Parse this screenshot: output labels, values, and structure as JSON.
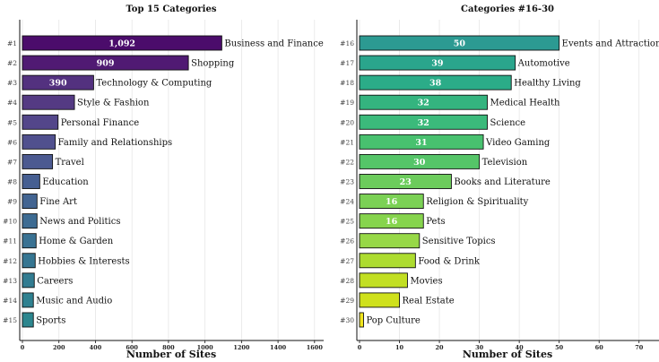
{
  "chart_data": [
    {
      "type": "bar",
      "orientation": "horizontal",
      "title": "Top 15 Categories",
      "xlabel": "Number of Sites",
      "ylabel": "",
      "xlim": [
        0,
        1650
      ],
      "xticks": [
        0,
        200,
        400,
        600,
        800,
        1000,
        1200,
        1400,
        1600
      ],
      "grid": "vertical",
      "ranks": [
        "#1",
        "#2",
        "#3",
        "#4",
        "#5",
        "#6",
        "#7",
        "#8",
        "#9",
        "#10",
        "#11",
        "#12",
        "#13",
        "#14",
        "#15"
      ],
      "categories": [
        "Business and Finance",
        "Shopping",
        "Technology & Computing",
        "Style & Fashion",
        "Personal Finance",
        "Family and Relationships",
        "Travel",
        "Education",
        "Fine Art",
        "News and Politics",
        "Home & Garden",
        "Hobbies & Interests",
        "Careers",
        "Music and Audio",
        "Sports"
      ],
      "values": [
        1092,
        909,
        390,
        285,
        195,
        180,
        165,
        95,
        80,
        80,
        75,
        70,
        65,
        60,
        60
      ],
      "value_labels": [
        "1,092",
        "909",
        "390",
        "",
        "",
        "",
        "",
        "",
        "",
        "",
        "",
        "",
        "",
        "",
        ""
      ],
      "colors": [
        "#4b0c6b",
        "#501a73",
        "#53317f",
        "#543a83",
        "#53468a",
        "#50508e",
        "#4c5a91",
        "#465f92",
        "#436592",
        "#3e6c93",
        "#3a7293",
        "#367692",
        "#327c91",
        "#2f8190",
        "#2c868e"
      ]
    },
    {
      "type": "bar",
      "orientation": "horizontal",
      "title": "Categories #16-30",
      "xlabel": "Number of Sites",
      "ylabel": "",
      "xlim": [
        0,
        75
      ],
      "xticks": [
        0,
        10,
        20,
        30,
        40,
        50,
        60,
        70
      ],
      "grid": "vertical",
      "ranks": [
        "#16",
        "#17",
        "#18",
        "#19",
        "#20",
        "#21",
        "#22",
        "#23",
        "#24",
        "#25",
        "#26",
        "#27",
        "#28",
        "#29",
        "#30"
      ],
      "categories": [
        "Events and Attractions",
        "Automotive",
        "Healthy Living",
        "Medical Health",
        "Science",
        "Video Gaming",
        "Television",
        "Books and Literature",
        "Religion & Spirituality",
        "Pets",
        "Sensitive Topics",
        "Food & Drink",
        "Movies",
        "Real Estate",
        "Pop Culture"
      ],
      "values": [
        50,
        39,
        38,
        32,
        32,
        31,
        30,
        23,
        16,
        16,
        15,
        14,
        12,
        10,
        1
      ],
      "value_labels": [
        "50",
        "39",
        "38",
        "32",
        "32",
        "31",
        "30",
        "23",
        "16",
        "16",
        "",
        "",
        "",
        "",
        ""
      ],
      "colors": [
        "#2c9a92",
        "#2aa58c",
        "#2bac88",
        "#34b47f",
        "#3bba7b",
        "#48c16f",
        "#55c568",
        "#6ccc5c",
        "#7bd155",
        "#86d44d",
        "#97d847",
        "#addc30",
        "#c2df23",
        "#cfe11c",
        "#f0e51e"
      ]
    }
  ]
}
